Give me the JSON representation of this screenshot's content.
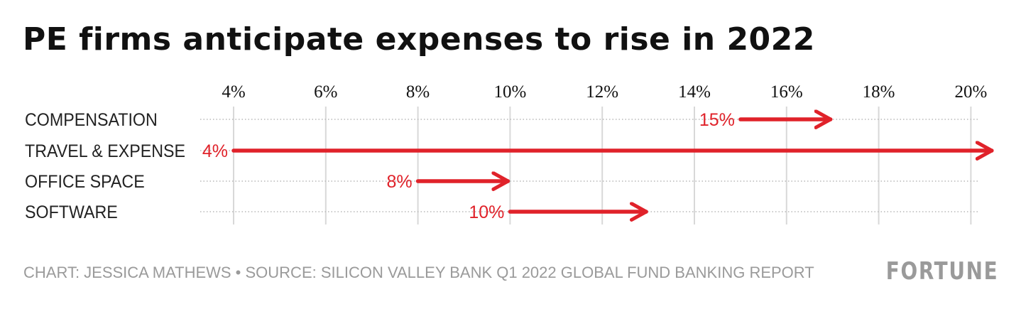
{
  "chart_data": {
    "type": "arrow-range",
    "title": "PE firms anticipate expenses to rise in 2022",
    "x_ticks": [
      "4%",
      "6%",
      "8%",
      "10%",
      "12%",
      "14%",
      "16%",
      "18%",
      "20%"
    ],
    "x_tick_values": [
      4,
      6,
      8,
      10,
      12,
      14,
      16,
      18,
      20
    ],
    "xlim": [
      4,
      20
    ],
    "grid": true,
    "categories": [
      "COMPENSATION",
      "TRAVEL & EXPENSE",
      "OFFICE SPACE",
      "SOFTWARE"
    ],
    "series": [
      {
        "category": "COMPENSATION",
        "start": 15,
        "end": 17,
        "label": "15%"
      },
      {
        "category": "TRAVEL & EXPENSE",
        "start": 4,
        "end": 20.5,
        "label": "4%"
      },
      {
        "category": "OFFICE SPACE",
        "start": 8,
        "end": 10,
        "label": "8%"
      },
      {
        "category": "SOFTWARE",
        "start": 10,
        "end": 13,
        "label": "10%"
      }
    ],
    "colors": {
      "arrow": "#e0222a",
      "label": "#e0222a",
      "grid": "#d8d8d8",
      "text": "#222222"
    }
  },
  "footer": {
    "credit": "CHART: JESSICA MATHEWS • SOURCE: SILICON VALLEY BANK Q1 2022 GLOBAL FUND BANKING REPORT",
    "logo_text": "FORTUNE"
  }
}
